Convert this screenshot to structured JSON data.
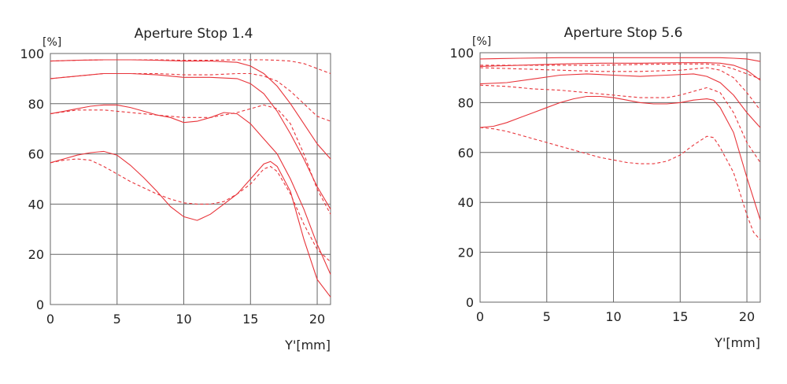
{
  "chart_data": [
    {
      "type": "line",
      "title": "Aperture Stop 1.4",
      "ylabel": "[%]",
      "xlabel": "Y'[mm]",
      "xlim": [
        0,
        21
      ],
      "ylim": [
        0,
        100
      ],
      "xticks": [
        0,
        5,
        10,
        15,
        20
      ],
      "yticks": [
        0,
        20,
        40,
        60,
        80,
        100
      ],
      "grid": true,
      "series": [
        {
          "style": "solid",
          "x": [
            0,
            2,
            4,
            6,
            8,
            10,
            12,
            14,
            15,
            16,
            17,
            18,
            19,
            20,
            21
          ],
          "y": [
            97,
            97.3,
            97.5,
            97.5,
            97.3,
            97,
            97,
            96.5,
            95,
            92,
            87,
            80,
            72,
            64,
            58
          ]
        },
        {
          "style": "dashed",
          "x": [
            0,
            2,
            4,
            6,
            8,
            10,
            12,
            14,
            16,
            17,
            18,
            19,
            20,
            21
          ],
          "y": [
            97,
            97.3,
            97.5,
            97.5,
            97.5,
            97.3,
            97.3,
            97.5,
            97.5,
            97.3,
            97,
            96,
            94,
            92
          ]
        },
        {
          "style": "solid",
          "x": [
            0,
            2,
            4,
            6,
            8,
            10,
            12,
            14,
            15,
            16,
            17,
            18,
            19,
            20,
            21
          ],
          "y": [
            90,
            91,
            92,
            92,
            91.5,
            90.5,
            90.5,
            90,
            88,
            84,
            77,
            68,
            58,
            47,
            38
          ]
        },
        {
          "style": "dashed",
          "x": [
            0,
            2,
            4,
            6,
            8,
            10,
            12,
            14,
            15,
            16,
            17,
            18,
            19,
            20,
            21
          ],
          "y": [
            90,
            91,
            92,
            92,
            92,
            91.5,
            91.5,
            92,
            92,
            91,
            89,
            85,
            80,
            75,
            73
          ]
        },
        {
          "style": "solid",
          "x": [
            0,
            1,
            2,
            3,
            4,
            5,
            6,
            7,
            8,
            9,
            10,
            11,
            12,
            13,
            14,
            15,
            16,
            17,
            18,
            19,
            20,
            21
          ],
          "y": [
            76,
            77,
            78,
            79,
            79.5,
            79.5,
            78.5,
            77,
            75.5,
            74.5,
            72.5,
            73,
            74.5,
            76.5,
            76,
            72,
            66,
            60,
            50,
            38,
            24,
            12
          ]
        },
        {
          "style": "dashed",
          "x": [
            0,
            2,
            4,
            6,
            8,
            10,
            12,
            14,
            15,
            16,
            17,
            18,
            19,
            20,
            21
          ],
          "y": [
            76,
            77.5,
            77.5,
            76.5,
            75.5,
            74.5,
            74.5,
            76.5,
            78,
            79.5,
            78,
            72,
            60,
            46,
            36
          ]
        },
        {
          "style": "solid",
          "x": [
            0,
            1,
            2,
            3,
            4,
            5,
            6,
            7,
            8,
            9,
            10,
            11,
            12,
            13,
            14,
            15,
            16,
            16.5,
            17,
            18,
            19,
            20,
            21
          ],
          "y": [
            56.5,
            58,
            59.5,
            60.5,
            61,
            59.5,
            55.5,
            50.5,
            45,
            39,
            35,
            33.5,
            36,
            40,
            44,
            50,
            56,
            57,
            55,
            45,
            26,
            10,
            3
          ]
        },
        {
          "style": "dashed",
          "x": [
            0,
            1,
            2,
            3,
            4,
            5,
            6,
            7,
            8,
            9,
            10,
            11,
            12,
            13,
            14,
            15,
            16,
            16.5,
            17,
            18,
            19,
            20,
            21
          ],
          "y": [
            56.5,
            57.5,
            58,
            57.5,
            55,
            52,
            49,
            46.5,
            44,
            42,
            40.5,
            40,
            40,
            41,
            44,
            48,
            54,
            55,
            53,
            44,
            32,
            22,
            17
          ]
        }
      ]
    },
    {
      "type": "line",
      "title": "Aperture Stop 5.6",
      "ylabel": "[%]",
      "xlabel": "Y'[mm]",
      "xlim": [
        0,
        21
      ],
      "ylim": [
        0,
        100
      ],
      "xticks": [
        0,
        5,
        10,
        15,
        20
      ],
      "yticks": [
        0,
        20,
        40,
        60,
        80,
        100
      ],
      "grid": true,
      "series": [
        {
          "style": "solid",
          "x": [
            0,
            3,
            6,
            9,
            12,
            15,
            17,
            18,
            19,
            20,
            21
          ],
          "y": [
            97.5,
            97.8,
            98,
            98,
            98,
            98,
            98,
            98,
            97.8,
            97.5,
            96.5
          ]
        },
        {
          "style": "solid",
          "x": [
            0,
            3,
            6,
            9,
            12,
            15,
            17,
            18,
            19,
            20,
            21
          ],
          "y": [
            94.5,
            95,
            95.5,
            95.8,
            95.8,
            96,
            96,
            95.8,
            95,
            93,
            89
          ]
        },
        {
          "style": "dashed",
          "x": [
            0,
            3,
            6,
            9,
            12,
            15,
            17,
            18,
            19,
            20,
            21
          ],
          "y": [
            95,
            95,
            95,
            95,
            95.3,
            95.5,
            95.5,
            95,
            93.5,
            91.5,
            89.5
          ]
        },
        {
          "style": "dashed",
          "x": [
            0,
            3,
            6,
            9,
            12,
            15,
            17,
            18,
            19,
            20,
            21
          ],
          "y": [
            94,
            93.5,
            93,
            92.5,
            92.5,
            93,
            94,
            93,
            90,
            84,
            77
          ]
        },
        {
          "style": "solid",
          "x": [
            0,
            2,
            4,
            6,
            8,
            10,
            12,
            14,
            16,
            17,
            18,
            19,
            20,
            21
          ],
          "y": [
            87.5,
            88,
            89.5,
            91,
            91.5,
            91,
            90.5,
            91,
            91.5,
            90.5,
            88,
            83,
            76,
            70
          ]
        },
        {
          "style": "dashed",
          "x": [
            0,
            2,
            4,
            6,
            8,
            10,
            12,
            14,
            15,
            16,
            17,
            18,
            19,
            20,
            21
          ],
          "y": [
            87,
            86.5,
            85.5,
            85,
            84,
            83,
            82,
            82,
            83,
            84.5,
            86,
            84,
            76,
            64,
            56
          ]
        },
        {
          "style": "solid",
          "x": [
            0,
            1,
            2,
            3,
            4,
            5,
            6,
            7,
            8,
            9,
            10,
            11,
            12,
            13,
            14,
            15,
            16,
            17,
            17.5,
            18,
            19,
            20,
            21
          ],
          "y": [
            70,
            70.5,
            72,
            74,
            76,
            78,
            80,
            81.5,
            82.5,
            82.5,
            82,
            81,
            80,
            79.5,
            79.5,
            80,
            81,
            81.5,
            81,
            78,
            68,
            50,
            33
          ]
        },
        {
          "style": "dashed",
          "x": [
            0,
            1,
            2,
            3,
            4,
            5,
            6,
            7,
            8,
            9,
            10,
            11,
            12,
            13,
            14,
            15,
            16,
            17,
            17.5,
            18,
            19,
            20,
            20.5,
            21
          ],
          "y": [
            70,
            69.5,
            68.5,
            67,
            65.5,
            64,
            62.5,
            61,
            59.5,
            58,
            57,
            56,
            55.5,
            55.5,
            56.5,
            59,
            63,
            66.5,
            66,
            62,
            52,
            35,
            28,
            25
          ]
        }
      ]
    }
  ]
}
